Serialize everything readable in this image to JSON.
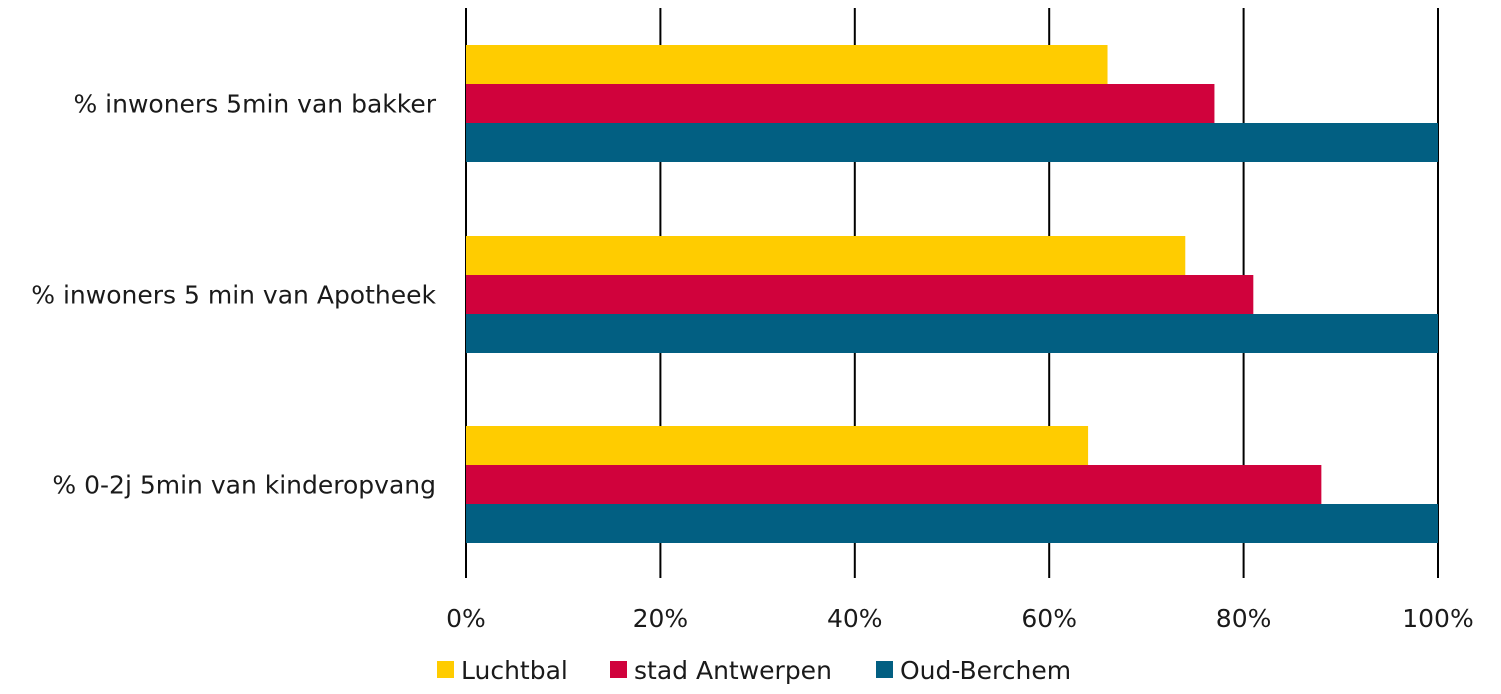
{
  "chart_data": {
    "type": "bar",
    "orientation": "horizontal",
    "categories": [
      "% inwoners 5min van bakker",
      "% inwoners 5 min van Apotheek",
      "% 0-2j 5min van kinderopvang"
    ],
    "series": [
      {
        "name": "Luchtbal",
        "color": "#ffcc00",
        "values": [
          0.66,
          0.74,
          0.64
        ]
      },
      {
        "name": "stad Antwerpen",
        "color": "#d0023c",
        "values": [
          0.77,
          0.81,
          0.88
        ]
      },
      {
        "name": "Oud-Berchem",
        "color": "#025f82",
        "values": [
          1.0,
          1.0,
          1.0
        ]
      }
    ],
    "xlim": [
      0,
      1
    ],
    "ticks": [
      0,
      0.2,
      0.4,
      0.6,
      0.8,
      1.0
    ],
    "tick_labels": [
      "0%",
      "20%",
      "40%",
      "60%",
      "80%",
      "100%"
    ],
    "grid": true,
    "legend_position": "bottom-center",
    "title": "",
    "xlabel": "",
    "ylabel": ""
  }
}
